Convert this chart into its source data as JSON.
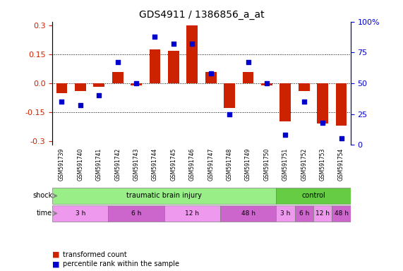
{
  "title": "GDS4911 / 1386856_a_at",
  "samples": [
    "GSM591739",
    "GSM591740",
    "GSM591741",
    "GSM591742",
    "GSM591743",
    "GSM591744",
    "GSM591745",
    "GSM591746",
    "GSM591747",
    "GSM591748",
    "GSM591749",
    "GSM591750",
    "GSM591751",
    "GSM591752",
    "GSM591753",
    "GSM591754"
  ],
  "bar_values": [
    -0.05,
    -0.04,
    -0.02,
    0.06,
    -0.01,
    0.175,
    0.17,
    0.3,
    0.06,
    -0.13,
    0.06,
    -0.01,
    -0.2,
    -0.04,
    -0.21,
    -0.22
  ],
  "dot_values": [
    35,
    32,
    40,
    67,
    50,
    88,
    82,
    82,
    58,
    25,
    67,
    50,
    8,
    35,
    18,
    5
  ],
  "ylim_left": [
    -0.32,
    0.32
  ],
  "ylim_right": [
    0,
    100
  ],
  "yticks_left": [
    -0.3,
    -0.15,
    0.0,
    0.15,
    0.3
  ],
  "yticks_right": [
    0,
    25,
    50,
    75,
    100
  ],
  "bar_color": "#cc2200",
  "dot_color": "#0000cc",
  "shock_groups": [
    {
      "label": "traumatic brain injury",
      "start": 0,
      "end": 12,
      "color": "#99ee88"
    },
    {
      "label": "control",
      "start": 12,
      "end": 16,
      "color": "#66cc44"
    }
  ],
  "time_groups": [
    {
      "label": "3 h",
      "start": 0,
      "end": 3,
      "color": "#ee99ee"
    },
    {
      "label": "6 h",
      "start": 3,
      "end": 6,
      "color": "#cc66cc"
    },
    {
      "label": "12 h",
      "start": 6,
      "end": 9,
      "color": "#ee99ee"
    },
    {
      "label": "48 h",
      "start": 9,
      "end": 12,
      "color": "#cc66cc"
    },
    {
      "label": "3 h",
      "start": 12,
      "end": 13,
      "color": "#ee99ee"
    },
    {
      "label": "6 h",
      "start": 13,
      "end": 14,
      "color": "#cc66cc"
    },
    {
      "label": "12 h",
      "start": 14,
      "end": 15,
      "color": "#ee99ee"
    },
    {
      "label": "48 h",
      "start": 15,
      "end": 16,
      "color": "#cc66cc"
    }
  ],
  "legend_items": [
    {
      "label": "transformed count",
      "color": "#cc2200",
      "marker": "s"
    },
    {
      "label": "percentile rank within the sample",
      "color": "#0000cc",
      "marker": "s"
    }
  ],
  "xlabel_color": "#cc2200",
  "ylabel_right_color": "#0000cc",
  "bg_color": "#ffffff",
  "plot_bg_color": "#ffffff",
  "grid_color": "#000000",
  "sample_bg_color": "#cccccc"
}
